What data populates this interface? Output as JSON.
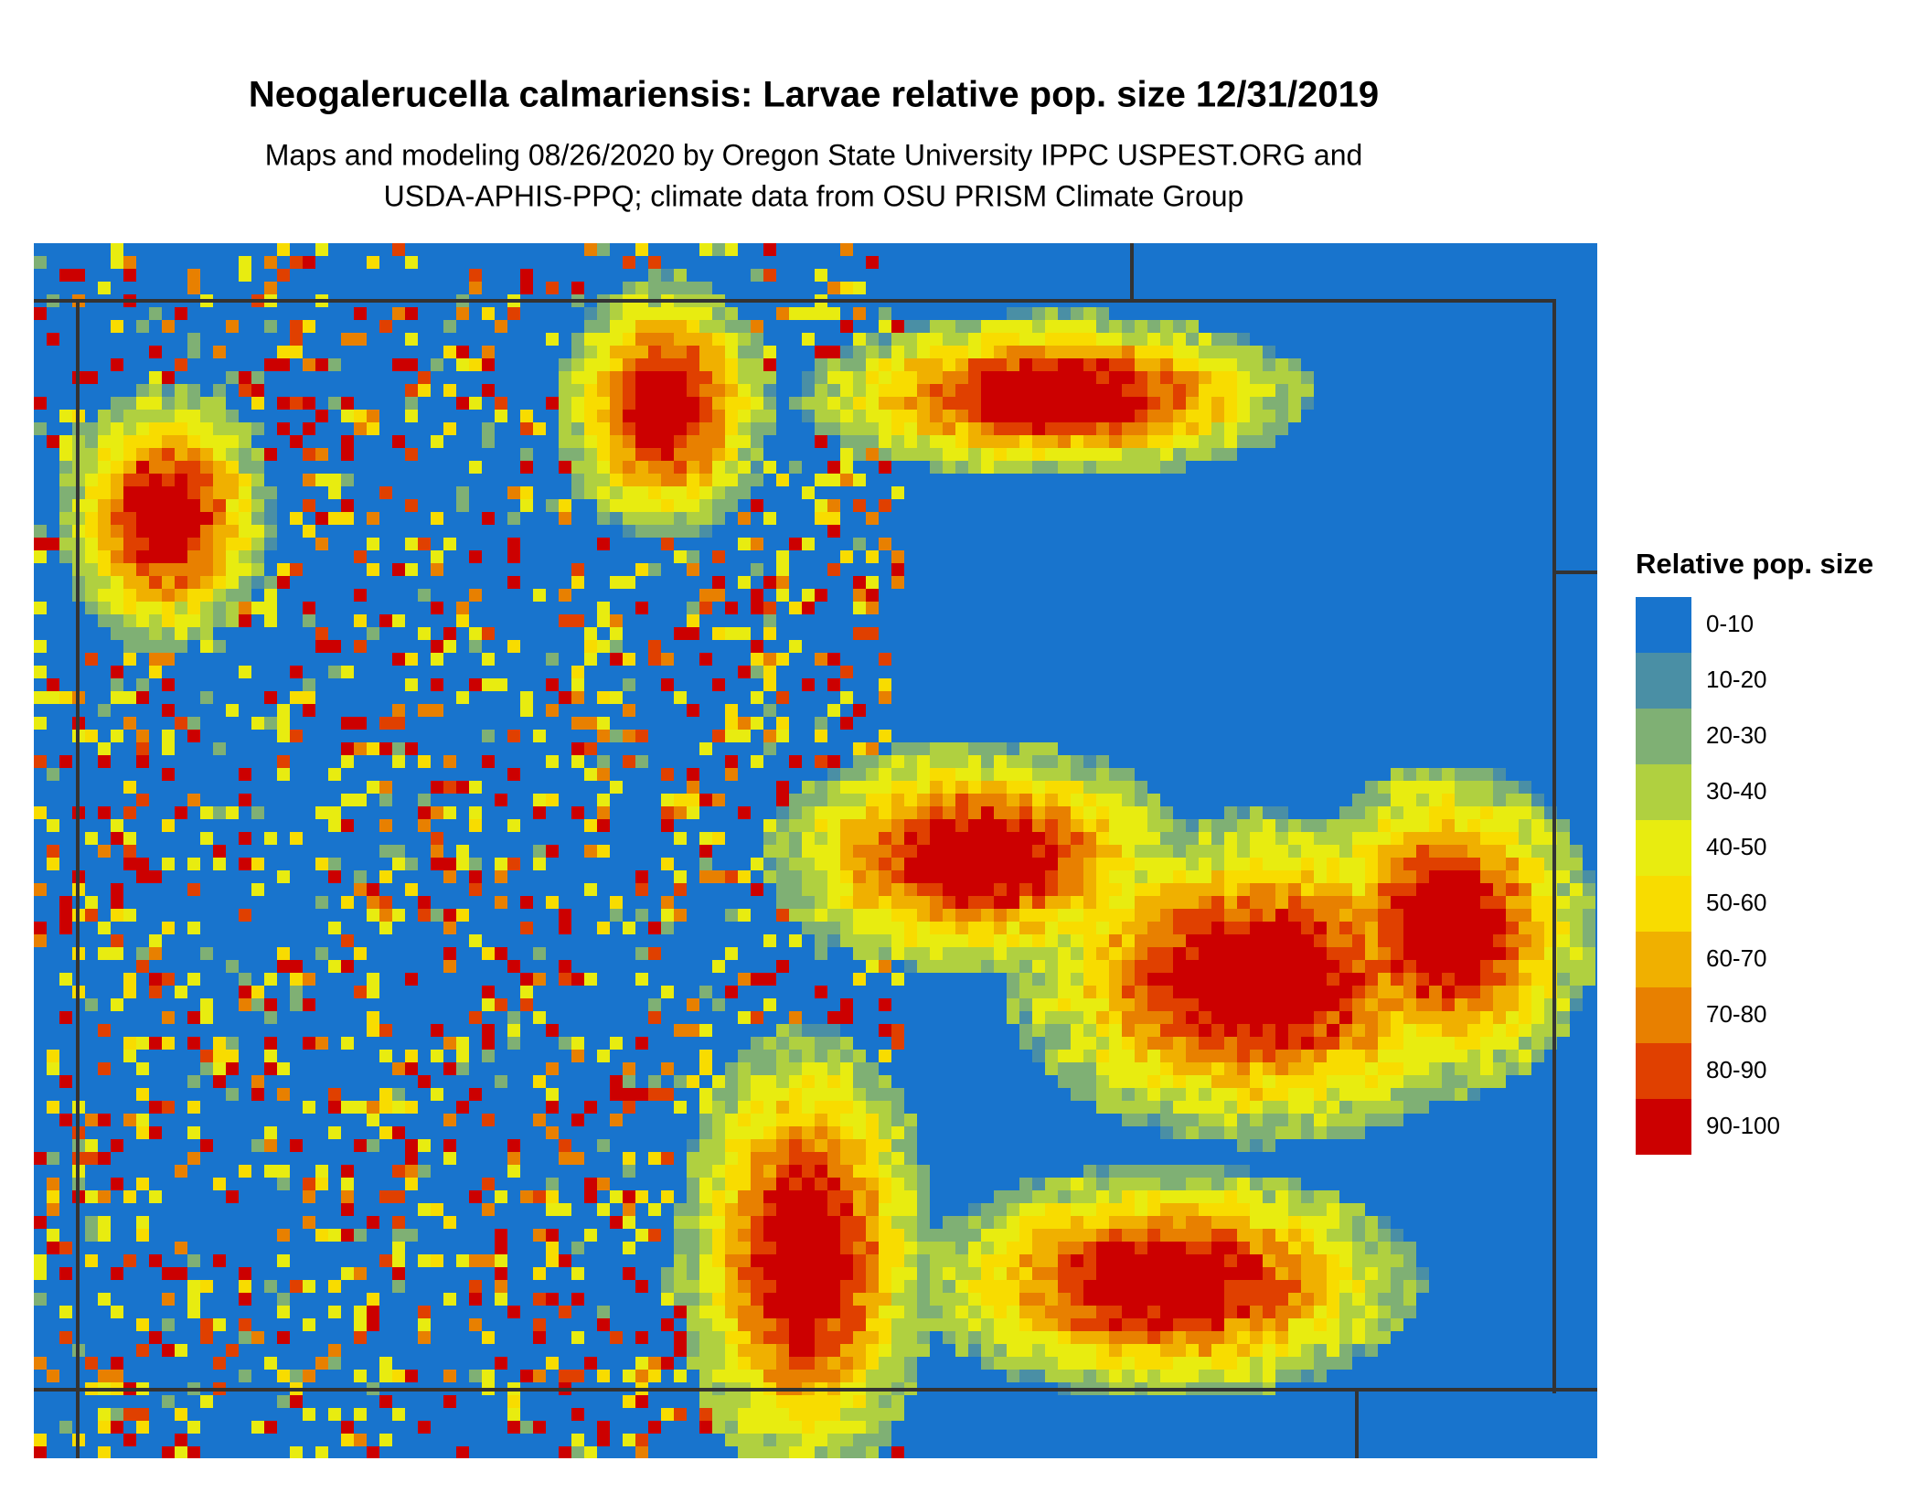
{
  "header": {
    "title": "Neogalerucella calmariensis: Larvae relative pop. size 12/31/2019",
    "subtitle_lines": [
      "Maps and modeling 08/26/2020 by Oregon State University IPPC USPEST.ORG and",
      "USDA-APHIS-PPQ; climate data from OSU PRISM Climate Group"
    ]
  },
  "legend": {
    "title": "Relative pop. size",
    "items": [
      {
        "label": "0-10",
        "color": "#1874cd"
      },
      {
        "label": "10-20",
        "color": "#4a8fa5"
      },
      {
        "label": "20-30",
        "color": "#7fb074"
      },
      {
        "label": "30-40",
        "color": "#b0d040"
      },
      {
        "label": "40-50",
        "color": "#e8ec10"
      },
      {
        "label": "50-60",
        "color": "#f8dc00"
      },
      {
        "label": "60-70",
        "color": "#f0b000"
      },
      {
        "label": "70-80",
        "color": "#e88000"
      },
      {
        "label": "80-90",
        "color": "#e04000"
      },
      {
        "label": "90-100",
        "color": "#cc0000"
      }
    ]
  }
}
